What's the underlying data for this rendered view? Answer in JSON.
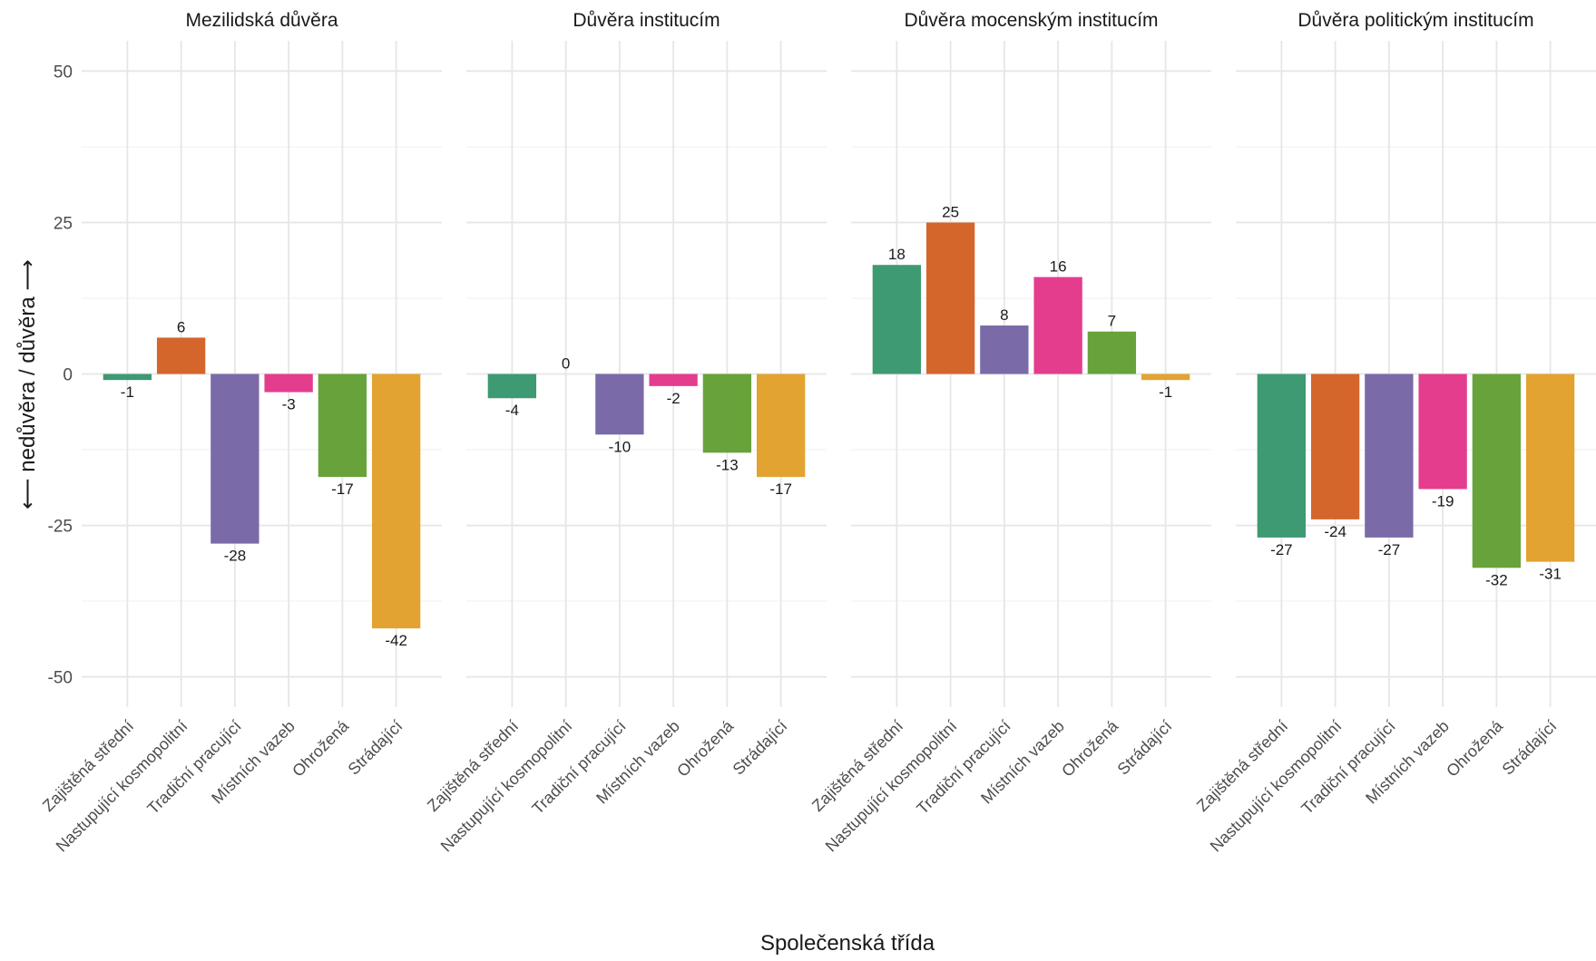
{
  "chart_data": {
    "type": "bar",
    "xlabel": "Společenská třída",
    "ylabel": "⟵ nedůvěra / důvěra ⟶",
    "ylim": [
      -55,
      55
    ],
    "yticks": [
      {
        "value": 50,
        "label": "50"
      },
      {
        "value": 25,
        "label": "25"
      },
      {
        "value": 0,
        "label": "0"
      },
      {
        "value": -25,
        "label": "-25"
      },
      {
        "value": -50,
        "label": "-50"
      }
    ],
    "grid": true,
    "legend": "none",
    "categories": [
      "Zajištěná střední",
      "Nastupující kosmopolitní",
      "Tradiční pracující",
      "Místních vazeb",
      "Ohrožená",
      "Strádající"
    ],
    "colors": [
      "#3d9a72",
      "#d4652b",
      "#7a6aa8",
      "#e43d8e",
      "#67a33a",
      "#e3a330"
    ],
    "facets": [
      {
        "title": "Mezilidská důvěra",
        "values": [
          -1,
          6,
          -28,
          -3,
          -17,
          -42
        ]
      },
      {
        "title": "Důvěra institucím",
        "values": [
          -4,
          0,
          -10,
          -2,
          -13,
          -17
        ]
      },
      {
        "title": "Důvěra mocenským institucím",
        "values": [
          18,
          25,
          8,
          16,
          7,
          -1
        ]
      },
      {
        "title": "Důvěra politickým institucím",
        "values": [
          -27,
          -24,
          -27,
          -19,
          -32,
          -31
        ]
      }
    ]
  }
}
